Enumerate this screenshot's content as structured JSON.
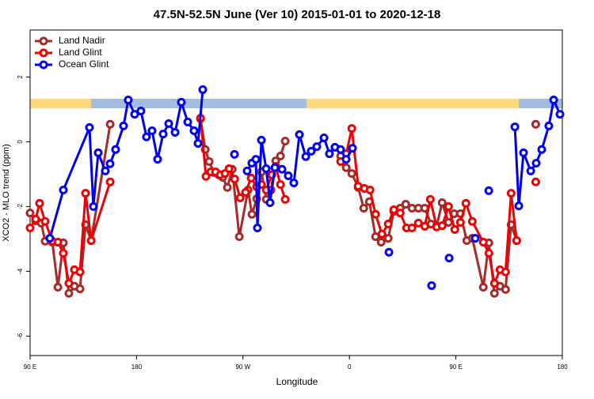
{
  "chart_data": {
    "type": "line",
    "title": "47.5N-52.5N June (Ver 10)   2015-01-01 to 2020-12-18",
    "x_label": "Longitude",
    "y_label": "XCO2 - MLO trend (ppm)",
    "xlim": [
      90,
      540
    ],
    "ylim": [
      -6.6,
      3.45
    ],
    "xticks": [
      {
        "value": 90,
        "label": "90 E"
      },
      {
        "value": 180,
        "label": "180"
      },
      {
        "value": 270,
        "label": "90 W"
      },
      {
        "value": 360,
        "label": "0"
      },
      {
        "value": 450,
        "label": "90 E"
      },
      {
        "value": 540,
        "label": "180"
      }
    ],
    "yticks": [
      -6,
      -4,
      -2,
      0,
      2
    ],
    "legend": "top-left",
    "series": [
      {
        "name": "Land Nadir",
        "color": "#a52a2a",
        "x": [
          90,
          94.7,
          99.4,
          102.7,
          108.8,
          113.5,
          118.1,
          122.8,
          127.5,
          132.2,
          136.9,
          141.6,
          157.7,
          null,
          234.1,
          238.1,
          241.4,
          245.4,
          249.5,
          252.8,
          256.8,
          260.9,
          266.9,
          274.3,
          277.6,
          281.6,
          285.6,
          289.7,
          293.7,
          297.7,
          301.7,
          305.7,
          null,
          352.6,
          357.3,
          362.0,
          367.4,
          372.1,
          376.8,
          382.1,
          386.8,
          392.8,
          397.5,
          402.9,
          407.6,
          412.9,
          418.3,
          423.7,
          429.0,
          433.7,
          438.4,
          443.8,
          448.5,
          453.8,
          459.2,
          463.9,
          473.2,
          477.9,
          482.6,
          487.3,
          492.0,
          496.7,
          501.4,
          null,
          517.5
        ],
        "values": [
          -2.2,
          -2.44,
          -2.51,
          -3.07,
          -3.1,
          -4.49,
          -3.12,
          -4.68,
          -4.46,
          -4.54,
          -2.56,
          -3.05,
          0.54,
          null,
          0.71,
          -0.24,
          -0.61,
          -0.95,
          -1.02,
          -1.1,
          -1.41,
          -0.85,
          -2.93,
          -1.49,
          -2.24,
          -1.76,
          -0.93,
          -1.78,
          -1.49,
          -0.59,
          -0.44,
          0.02,
          null,
          -0.44,
          -0.8,
          -0.98,
          -1.41,
          -2.05,
          -1.85,
          -2.93,
          -3.1,
          -2.98,
          -2.15,
          -2.05,
          -1.93,
          -2.05,
          -2.05,
          -2.05,
          -2.54,
          -2.61,
          -1.88,
          -2.49,
          -2.22,
          -2.22,
          -3.05,
          -2.98,
          -4.49,
          -3.12,
          -4.68,
          -4.46,
          -4.56,
          -2.56,
          -3.05,
          null,
          0.54
        ]
      },
      {
        "name": "Land Glint",
        "color": "#ee0000",
        "x": [
          90,
          94.7,
          98.0,
          102.7,
          108.8,
          113.5,
          118.1,
          122.8,
          127.5,
          132.2,
          136.9,
          141.6,
          157.7,
          null,
          234.1,
          238.7,
          242.8,
          246.8,
          250.8,
          254.8,
          258.2,
          262.9,
          267.6,
          272.2,
          276.9,
          281.6,
          285.6,
          289.7,
          294.4,
          297.7,
          301.7,
          305.7,
          null,
          352.6,
          357.3,
          362.0,
          367.4,
          372.7,
          377.4,
          382.1,
          387.5,
          392.8,
          397.5,
          402.9,
          408.3,
          412.9,
          418.3,
          423.7,
          428.4,
          433.7,
          438.4,
          443.8,
          449.1,
          453.8,
          458.5,
          463.9,
          473.2,
          477.9,
          482.6,
          487.3,
          492.0,
          496.7,
          501.4,
          null,
          517.5
        ],
        "values": [
          -2.66,
          -2.39,
          -1.9,
          -2.46,
          -3.07,
          -3.1,
          -3.44,
          -4.37,
          -3.95,
          -4.02,
          -1.59,
          -3.05,
          -1.24,
          null,
          0.73,
          -1.07,
          -0.93,
          -0.93,
          -1.02,
          -0.98,
          -0.83,
          -1.15,
          -1.73,
          -1.56,
          -1.12,
          -1.39,
          -1.32,
          -1.49,
          -1.02,
          -0.76,
          -1.32,
          -1.78,
          null,
          -0.61,
          -0.37,
          0.41,
          -1.37,
          -1.44,
          -1.49,
          -2.24,
          -2.85,
          -2.54,
          -2.1,
          -2.2,
          -2.66,
          -2.66,
          -2.51,
          -2.61,
          -1.78,
          -2.63,
          -2.59,
          -2.0,
          -2.71,
          -2.49,
          -1.9,
          -2.46,
          -3.1,
          -3.44,
          -4.37,
          -3.95,
          -4.02,
          -1.59,
          -3.05,
          null,
          -1.24
        ]
      },
      {
        "name": "Ocean Glint",
        "color": "#0000ee",
        "x": [
          106.7,
          118.1,
          140.2,
          143.5,
          147.6,
          153.6,
          157.6,
          162.3,
          169.0,
          173.0,
          178.4,
          183.7,
          188.4,
          193.1,
          197.8,
          202.5,
          207.2,
          212.6,
          217.9,
          223.3,
          228.6,
          232.0,
          236.0,
          null,
          262.8,
          null,
          273.5,
          277.5,
          280.9,
          282.2,
          285.6,
          289.6,
          292.9,
          297.0,
          303.0,
          308.3,
          313.0,
          317.7,
          323.1,
          327.7,
          332.4,
          338.5,
          343.1,
          347.8,
          352.5,
          357.2,
          362.6,
          null,
          393.4,
          null,
          429.5,
          null,
          444.3,
          null,
          466.4,
          null,
          477.8,
          null,
          499.9,
          503.2,
          507.2,
          513.3,
          517.9,
          522.6,
          528.6,
          532.7,
          538.0
        ],
        "values": [
          -2.98,
          -1.49,
          0.44,
          -2.0,
          -0.34,
          -0.9,
          -0.68,
          -0.24,
          0.49,
          1.29,
          0.85,
          0.95,
          0.15,
          0.34,
          -0.54,
          0.24,
          0.56,
          0.29,
          1.22,
          0.61,
          0.34,
          -0.05,
          1.61,
          null,
          -0.39,
          null,
          -0.9,
          -0.66,
          -0.54,
          -2.66,
          0.05,
          -0.83,
          -1.88,
          -0.8,
          -0.85,
          -1.05,
          -1.27,
          0.22,
          -0.46,
          -0.29,
          -0.15,
          0.12,
          -0.37,
          -0.17,
          -0.24,
          -0.54,
          -0.2,
          null,
          -3.41,
          null,
          -4.44,
          null,
          -3.59,
          null,
          -2.98,
          null,
          -1.51,
          null,
          0.46,
          -1.98,
          -0.34,
          -0.9,
          -0.66,
          -0.24,
          0.49,
          1.29,
          0.85
        ]
      }
    ]
  }
}
